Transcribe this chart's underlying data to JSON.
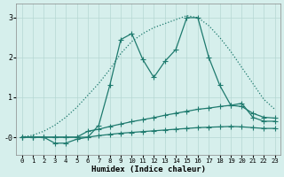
{
  "xlabel": "Humidex (Indice chaleur)",
  "xlim": [
    -0.5,
    23.5
  ],
  "ylim": [
    -0.45,
    3.35
  ],
  "yticks": [
    0,
    1,
    2,
    3
  ],
  "ytick_labels": [
    "-0",
    "1",
    "2",
    "3"
  ],
  "xticks": [
    0,
    1,
    2,
    3,
    4,
    5,
    6,
    7,
    8,
    9,
    10,
    11,
    12,
    13,
    14,
    15,
    16,
    17,
    18,
    19,
    20,
    21,
    22,
    23
  ],
  "bg_color": "#d6efec",
  "line_color": "#1e7a6e",
  "grid_color": "#b5d8d3",
  "linewidth": 0.9,
  "markersize": 2.5,
  "line_dotted_y": [
    0.0,
    0.05,
    0.15,
    0.3,
    0.5,
    0.75,
    1.05,
    1.35,
    1.7,
    2.1,
    2.4,
    2.6,
    2.75,
    2.85,
    2.95,
    3.05,
    3.0,
    2.8,
    2.5,
    2.15,
    1.75,
    1.35,
    0.95,
    0.7
  ],
  "line_solid_jagged_y": [
    0.0,
    0.0,
    0.0,
    0.0,
    0.0,
    0.0,
    0.0,
    0.3,
    1.3,
    2.45,
    2.6,
    1.95,
    1.5,
    1.9,
    2.2,
    3.0,
    3.0,
    2.0,
    1.3,
    0.8,
    0.85,
    0.5,
    0.4,
    0.4
  ],
  "line_mid_y": [
    0.0,
    0.0,
    0.0,
    0.0,
    0.0,
    0.0,
    0.15,
    0.2,
    0.27,
    0.33,
    0.39,
    0.44,
    0.49,
    0.55,
    0.6,
    0.65,
    0.7,
    0.73,
    0.77,
    0.8,
    0.77,
    0.6,
    0.5,
    0.48
  ],
  "line_flat_y": [
    0.0,
    0.0,
    0.0,
    -0.15,
    -0.15,
    -0.05,
    0.0,
    0.04,
    0.07,
    0.1,
    0.12,
    0.14,
    0.16,
    0.18,
    0.2,
    0.22,
    0.24,
    0.25,
    0.26,
    0.27,
    0.26,
    0.24,
    0.22,
    0.22
  ]
}
